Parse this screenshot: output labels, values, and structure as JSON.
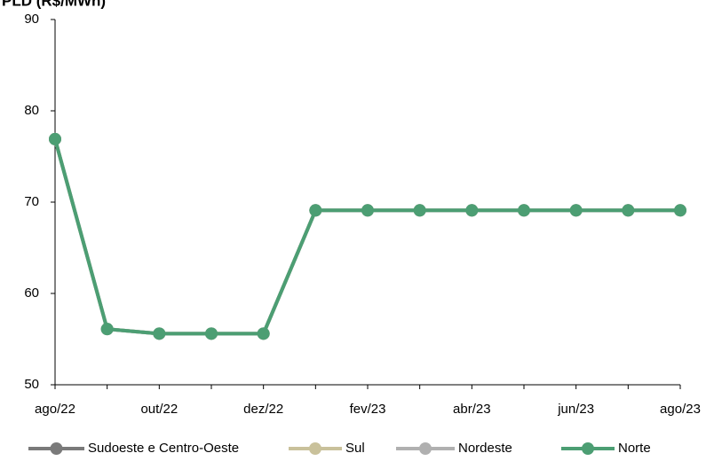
{
  "chart_data": {
    "type": "line",
    "title": "PLD (R$/MWh)",
    "categories": [
      "ago/22",
      null,
      "out/22",
      null,
      "dez/22",
      null,
      "fev/23",
      null,
      "abr/23",
      null,
      "jun/23",
      null,
      "ago/23"
    ],
    "series": [
      {
        "name": "Sudoeste e Centro-Oeste",
        "color": "#7a7a7a",
        "values": [
          76.9,
          56.1,
          55.6,
          55.6,
          55.6,
          69.1,
          69.1,
          69.1,
          69.1,
          69.1,
          69.1,
          69.1,
          69.1
        ]
      },
      {
        "name": "Sul",
        "color": "#c9c19b",
        "values": [
          76.9,
          56.1,
          55.6,
          55.6,
          55.6,
          69.1,
          69.1,
          69.1,
          69.1,
          69.1,
          69.1,
          69.1,
          69.1
        ]
      },
      {
        "name": "Nordeste",
        "color": "#b0b0b0",
        "values": [
          76.9,
          56.1,
          55.6,
          55.6,
          55.6,
          69.1,
          69.1,
          69.1,
          69.1,
          69.1,
          69.1,
          69.1,
          69.1
        ]
      },
      {
        "name": "Norte",
        "color": "#4c9e73",
        "values": [
          76.9,
          56.1,
          55.6,
          55.6,
          55.6,
          69.1,
          69.1,
          69.1,
          69.1,
          69.1,
          69.1,
          69.1,
          69.1
        ]
      }
    ],
    "ylim": [
      50,
      90
    ],
    "yticks": [
      50,
      60,
      70,
      80,
      90
    ],
    "grid": false,
    "legend": "bottom"
  }
}
